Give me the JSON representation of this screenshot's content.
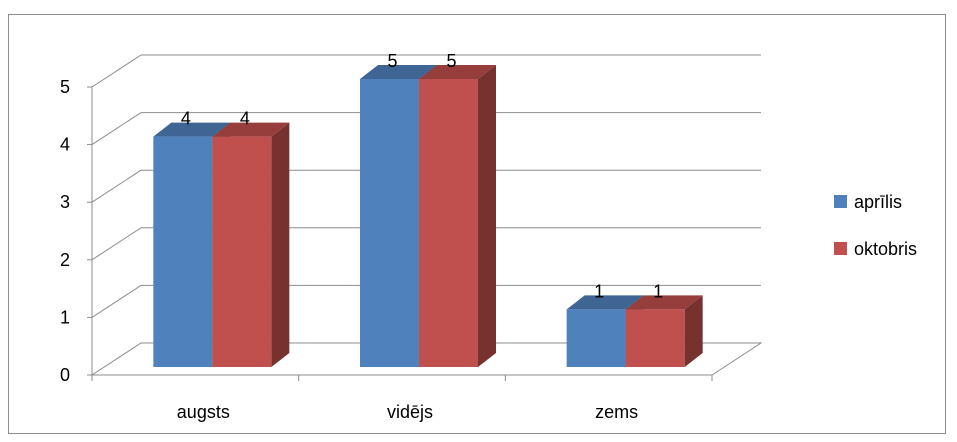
{
  "chart_data": {
    "type": "bar",
    "title": "",
    "xlabel": "",
    "ylabel": "",
    "categories": [
      "augsts",
      "vidējs",
      "zems"
    ],
    "series": [
      {
        "name": "aprīlis",
        "values": [
          4,
          5,
          1
        ],
        "color": "#4f81bd"
      },
      {
        "name": "oktobris",
        "values": [
          4,
          5,
          1
        ],
        "color": "#c0504d"
      }
    ],
    "ylim": [
      0,
      5
    ],
    "yticks": [
      0,
      1,
      2,
      3,
      4,
      5
    ],
    "grid": true,
    "legend_position": "right",
    "style": "3d-clustered-column",
    "data_labels": true
  }
}
